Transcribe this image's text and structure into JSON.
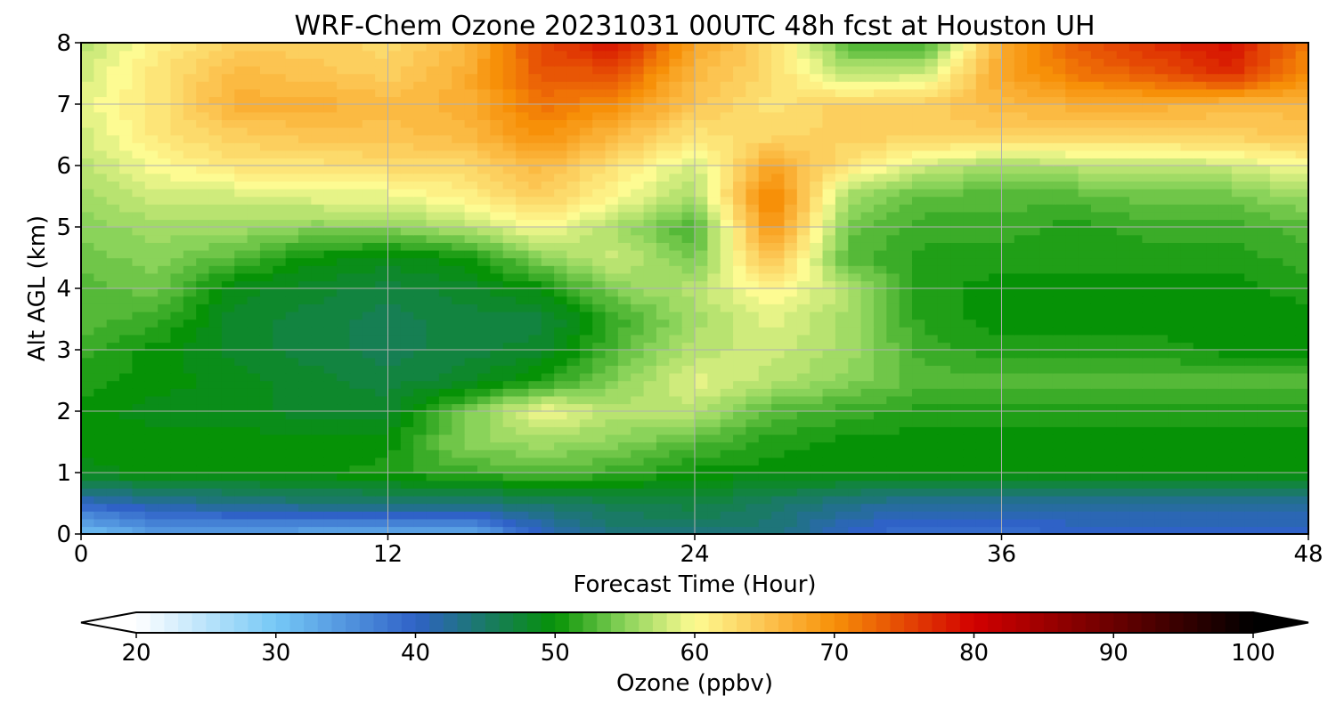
{
  "chart_data": {
    "type": "heatmap",
    "title": "WRF-Chem Ozone  20231031 00UTC 48h fcst at Houston UH",
    "xlabel": "Forecast Time (Hour)",
    "ylabel": "Alt AGL (km)",
    "xlim": [
      0,
      48
    ],
    "ylim": [
      0,
      8
    ],
    "x_ticks": [
      "0",
      "12",
      "24",
      "36",
      "48"
    ],
    "y_ticks": [
      "0",
      "1",
      "2",
      "3",
      "4",
      "5",
      "6",
      "7",
      "8"
    ],
    "grid": true,
    "x": [
      0,
      3,
      6,
      9,
      12,
      15,
      18,
      21,
      24,
      27,
      30,
      33,
      36,
      39,
      42,
      45,
      48
    ],
    "y": [
      0,
      0.5,
      1,
      1.5,
      2,
      2.5,
      3,
      3.5,
      4,
      4.5,
      5,
      5.5,
      6,
      6.5,
      7,
      7.5,
      8
    ],
    "z": [
      [
        30,
        34,
        34,
        33,
        33,
        32,
        40,
        44,
        44,
        44,
        40,
        38,
        38,
        40,
        40,
        40,
        40
      ],
      [
        40,
        42,
        43,
        44,
        44,
        44,
        45,
        46,
        47,
        45,
        43,
        42,
        42,
        42,
        42,
        42,
        42
      ],
      [
        49,
        50,
        50,
        50,
        51,
        52,
        53,
        52,
        50,
        50,
        50,
        50,
        50,
        50,
        50,
        50,
        50
      ],
      [
        50,
        50,
        50,
        50,
        50,
        55,
        56,
        55,
        53,
        51,
        50,
        50,
        50,
        50,
        50,
        50,
        50
      ],
      [
        50,
        49,
        49,
        48,
        48,
        54,
        60,
        57,
        57,
        53,
        52,
        51,
        51,
        51,
        51,
        51,
        51
      ],
      [
        51,
        50,
        49,
        48,
        47,
        48,
        51,
        55,
        59,
        57,
        55,
        53,
        53,
        53,
        53,
        53,
        53
      ],
      [
        52,
        50,
        48,
        47,
        46,
        47,
        48,
        53,
        57,
        58,
        56,
        52,
        51,
        51,
        51,
        50,
        50
      ],
      [
        53,
        52,
        48,
        47,
        46,
        47,
        47,
        52,
        56,
        59,
        56,
        51,
        50,
        50,
        50,
        50,
        50
      ],
      [
        53,
        54,
        49,
        48,
        47,
        48,
        50,
        55,
        57,
        61,
        57,
        51,
        50,
        50,
        50,
        50,
        51
      ],
      [
        54,
        55,
        53,
        50,
        49,
        50,
        55,
        58,
        54,
        66,
        53,
        51,
        51,
        51,
        51,
        51,
        52
      ],
      [
        55,
        56,
        56,
        55,
        55,
        57,
        60,
        56,
        52,
        70,
        54,
        52,
        52,
        51,
        52,
        52,
        53
      ],
      [
        56,
        58,
        58,
        59,
        59,
        61,
        64,
        60,
        56,
        72,
        56,
        53,
        53,
        53,
        54,
        54,
        56
      ],
      [
        57,
        60,
        62,
        62,
        63,
        63,
        66,
        62,
        58,
        68,
        62,
        58,
        56,
        57,
        57,
        58,
        60
      ],
      [
        58,
        62,
        64,
        65,
        65,
        66,
        70,
        66,
        62,
        63,
        64,
        64,
        64,
        64,
        64,
        64,
        65
      ],
      [
        59,
        62,
        67,
        67,
        66,
        67,
        72,
        70,
        65,
        62,
        64,
        64,
        66,
        67,
        67,
        66,
        66
      ],
      [
        58,
        62,
        66,
        65,
        64,
        67,
        74,
        74,
        66,
        63,
        57,
        58,
        68,
        72,
        74,
        77,
        70
      ],
      [
        57,
        61,
        64,
        64,
        63,
        66,
        75,
        79,
        68,
        63,
        53,
        52,
        67,
        74,
        77,
        79,
        71
      ]
    ]
  },
  "colorbar": {
    "label": "Ozone  (ppbv)",
    "min": 20,
    "max": 100,
    "tick_labels": [
      "20",
      "30",
      "40",
      "50",
      "60",
      "70",
      "80",
      "90",
      "100"
    ],
    "extend": "both",
    "color_stops": [
      {
        "v": 20,
        "c": "#ffffff"
      },
      {
        "v": 30,
        "c": "#75c8f6"
      },
      {
        "v": 40,
        "c": "#2f62c7"
      },
      {
        "v": 45,
        "c": "#1a7a66"
      },
      {
        "v": 50,
        "c": "#069206"
      },
      {
        "v": 55,
        "c": "#8ad35a"
      },
      {
        "v": 60,
        "c": "#fdfb92"
      },
      {
        "v": 65,
        "c": "#fcc451"
      },
      {
        "v": 70,
        "c": "#f79008"
      },
      {
        "v": 80,
        "c": "#d20000"
      },
      {
        "v": 90,
        "c": "#6a0000"
      },
      {
        "v": 100,
        "c": "#000000"
      }
    ]
  }
}
